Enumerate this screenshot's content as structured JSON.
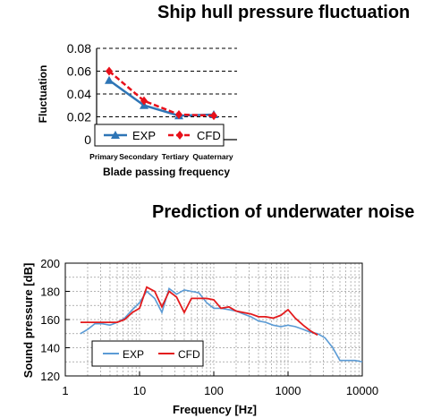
{
  "chart_data": [
    {
      "type": "line",
      "title": "Ship hull pressure fluctuation",
      "xlabel": "Blade passing frequency",
      "ylabel": "Fluctuation",
      "categories": [
        "Primary",
        "Secondary",
        "Tertiary",
        "Quaternary"
      ],
      "ylim": [
        0,
        0.08
      ],
      "yticks": [
        "0",
        "0.02",
        "0.04",
        "0.06",
        "0.08"
      ],
      "grid": "horizontal dashed",
      "legend_position": "bottom",
      "series": [
        {
          "name": "EXP",
          "values": [
            0.052,
            0.03,
            0.021,
            0.022
          ],
          "color": "#2e75b6",
          "marker": "triangle",
          "dash": "solid"
        },
        {
          "name": "CFD",
          "values": [
            0.06,
            0.034,
            0.022,
            0.021
          ],
          "color": "#e8101a",
          "marker": "diamond",
          "dash": "dashed"
        }
      ]
    },
    {
      "type": "line",
      "title": "Prediction of underwater noise",
      "xlabel": "Frequency [Hz]",
      "ylabel": "Sound pressure [dB]",
      "xscale": "log",
      "xlim": [
        1,
        10000
      ],
      "xticks": [
        "1",
        "10",
        "100",
        "1000",
        "10000"
      ],
      "ylim": [
        120,
        200
      ],
      "yticks": [
        "120",
        "140",
        "160",
        "180",
        "200"
      ],
      "grid": "both dashed",
      "legend_position": "bottom-left",
      "series": [
        {
          "name": "EXP",
          "color": "#5b9bd5",
          "x": [
            1.6,
            2,
            2.5,
            3.15,
            4,
            5,
            6.3,
            8,
            10,
            12.5,
            16,
            20,
            25,
            31.5,
            40,
            50,
            63,
            80,
            100,
            125,
            160,
            200,
            250,
            315,
            400,
            500,
            630,
            800,
            1000,
            1250,
            1600,
            2000,
            2500,
            3150,
            4000,
            5000,
            6300,
            8000,
            10000
          ],
          "y": [
            150,
            153,
            157,
            157,
            156,
            158,
            161,
            167,
            172,
            180,
            175,
            165,
            182,
            178,
            181,
            180,
            179,
            172,
            168,
            168,
            167,
            166,
            164,
            162,
            159,
            158,
            156,
            155,
            156,
            155,
            153,
            151,
            150,
            147,
            140,
            131,
            131,
            131,
            130
          ]
        },
        {
          "name": "CFD",
          "color": "#e31a1c",
          "x": [
            1.6,
            2.5,
            4,
            5,
            6.3,
            8,
            10,
            12.5,
            16,
            20,
            25,
            31.5,
            40,
            50,
            63,
            80,
            100,
            125,
            160,
            200,
            250,
            315,
            400,
            500,
            630,
            800,
            1000,
            1250,
            1600,
            2000,
            2500
          ],
          "y": [
            158,
            158,
            158,
            158,
            160,
            165,
            168,
            183,
            180,
            169,
            180,
            176,
            165,
            175,
            175,
            175,
            174,
            168,
            169,
            166,
            165,
            164,
            162,
            162,
            161,
            163,
            167,
            161,
            156,
            152,
            149
          ]
        }
      ]
    }
  ]
}
